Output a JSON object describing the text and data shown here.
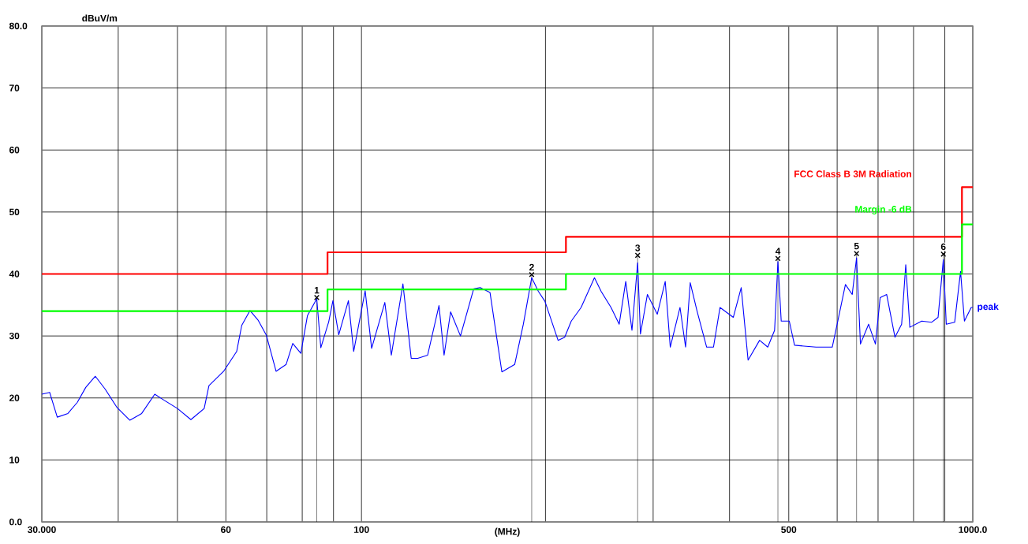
{
  "chart_data": {
    "type": "line",
    "xlabel": "(MHz)",
    "ylabel": "dBuV/m",
    "log": "x",
    "grid": true,
    "xlim": [
      30,
      1000
    ],
    "ylim": [
      0,
      80
    ],
    "xticks": [
      {
        "value": 30,
        "label": "30.000"
      },
      {
        "value": 40,
        "label": null
      },
      {
        "value": 50,
        "label": null
      },
      {
        "value": 60,
        "label": "60"
      },
      {
        "value": 70,
        "label": null
      },
      {
        "value": 80,
        "label": null
      },
      {
        "value": 90,
        "label": null
      },
      {
        "value": 100,
        "label": "100"
      },
      {
        "value": 200,
        "label": null
      },
      {
        "value": 300,
        "label": null
      },
      {
        "value": 400,
        "label": null
      },
      {
        "value": 500,
        "label": "500"
      },
      {
        "value": 600,
        "label": null
      },
      {
        "value": 700,
        "label": null
      },
      {
        "value": 800,
        "label": null
      },
      {
        "value": 900,
        "label": null
      },
      {
        "value": 1000,
        "label": "1000.0"
      }
    ],
    "yticks": [
      {
        "value": 0,
        "label": "0.0"
      },
      10,
      20,
      30,
      40,
      50,
      60,
      70,
      {
        "value": 80,
        "label": "80.0"
      }
    ],
    "series": [
      {
        "name": "peak",
        "color": "#0000ff",
        "x": [
          30,
          30.9,
          31.8,
          33.1,
          34.3,
          35.4,
          36.7,
          38.1,
          39.8,
          41.8,
          43.7,
          45.9,
          47.6,
          50.0,
          52.6,
          55.3,
          56.3,
          59.5,
          62.5,
          63.7,
          65.7,
          67.8,
          69.9,
          72.5,
          75.3,
          77.2,
          79.6,
          81.6,
          84.5,
          85.8,
          88.4,
          89.8,
          91.8,
          95.2,
          97.1,
          101.4,
          103.9,
          109.2,
          111.9,
          116.9,
          120.6,
          123.6,
          128.3,
          133.9,
          136.5,
          139.9,
          145.2,
          152.6,
          156.4,
          162.3,
          166.4,
          169.7,
          178.1,
          184,
          189.9,
          194.7,
          199.6,
          209.7,
          215,
          220.4,
          228.7,
          240.5,
          246.6,
          256,
          264,
          270.6,
          277,
          283,
          286,
          293.6,
          304.7,
          314,
          320,
          332,
          339,
          345,
          354,
          367,
          376.6,
          386,
          405.7,
          418,
          429,
          448,
          462,
          474,
          480,
          486,
          501,
          511,
          554,
          589,
          600,
          619,
          635,
          645.5,
          655,
          675.5,
          693,
          705.6,
          723,
          746,
          765,
          777,
          789,
          825,
          856,
          877.5,
          895,
          905,
          934,
          955,
          969,
          994,
          1000
        ],
        "values": [
          20.6,
          20.9,
          16.9,
          17.5,
          19.3,
          21.7,
          23.5,
          21.4,
          18.5,
          16.4,
          17.5,
          20.6,
          19.6,
          18.3,
          16.5,
          18.3,
          22.0,
          24.3,
          27.5,
          31.7,
          34.1,
          32.5,
          30.1,
          24.3,
          25.4,
          28.8,
          27.2,
          33.3,
          36.0,
          28.1,
          32.3,
          35.7,
          30.2,
          35.7,
          27.5,
          37.3,
          28.0,
          35.4,
          26.9,
          38.4,
          26.4,
          26.4,
          26.9,
          34.9,
          26.9,
          33.9,
          30.0,
          37.6,
          37.8,
          37.0,
          29.8,
          24.2,
          25.4,
          31.9,
          39.4,
          37.2,
          35.6,
          29.3,
          29.8,
          32.4,
          34.6,
          39.4,
          37.2,
          34.6,
          31.9,
          38.8,
          30.9,
          41.8,
          30.3,
          36.7,
          33.5,
          38.8,
          28.2,
          34.6,
          28.2,
          38.6,
          34.0,
          28.2,
          28.2,
          34.6,
          33.0,
          37.8,
          26.1,
          29.3,
          28.2,
          30.9,
          42.0,
          32.4,
          32.4,
          28.5,
          28.2,
          28.2,
          31.9,
          38.3,
          36.7,
          42.6,
          28.7,
          31.9,
          28.7,
          36.2,
          36.7,
          29.8,
          31.9,
          41.5,
          31.4,
          32.4,
          32.2,
          33.0,
          42.3,
          31.9,
          32.2,
          40.4,
          32.4,
          34.6,
          34.6
        ]
      },
      {
        "name": "FCC Class B 3M Radiation",
        "type": "step",
        "color": "#ff0000",
        "x": [
          30,
          88,
          216,
          960,
          1000
        ],
        "values": [
          40,
          43.5,
          46,
          54,
          54
        ]
      },
      {
        "name": "Margin -6 dB",
        "type": "step",
        "color": "#00ff00",
        "x": [
          30,
          88,
          216,
          960,
          1000
        ],
        "values": [
          34,
          37.5,
          40,
          48,
          48
        ]
      },
      {
        "type": "scatter",
        "marker": "cross",
        "color": "#000000",
        "x": [
          84.5,
          189.9,
          283,
          480,
          645.5,
          895
        ],
        "values": [
          36.2,
          39.9,
          43.0,
          42.5,
          43.3,
          43.2
        ]
      }
    ],
    "annotations": [
      {
        "text": "1",
        "x": 84.5,
        "y": 36.2
      },
      {
        "text": "2",
        "x": 189.9,
        "y": 39.9
      },
      {
        "text": "3",
        "x": 283,
        "y": 43.0
      },
      {
        "text": "4",
        "x": 480,
        "y": 42.5
      },
      {
        "text": "5",
        "x": 645.5,
        "y": 43.3
      },
      {
        "text": "6",
        "x": 895,
        "y": 43.2
      }
    ]
  }
}
